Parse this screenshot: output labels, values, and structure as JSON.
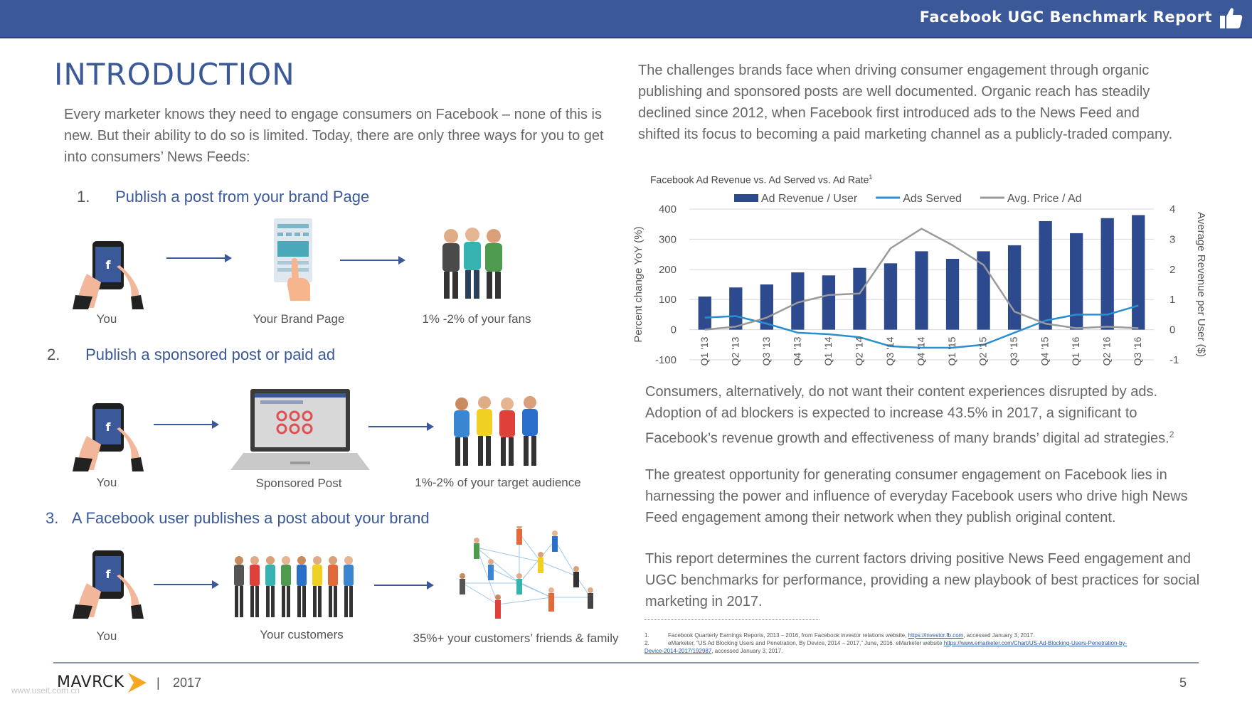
{
  "header": {
    "title": "Facebook UGC Benchmark Report",
    "icon": "thumbs-up-icon",
    "color": "#3b5998"
  },
  "left": {
    "title": "INTRODUCTION",
    "intro": "Every marketer knows they need to engage consumers on Facebook – none of this is new. But their ability to do so is limited. Today, there are only three ways for you to get into consumers’ News Feeds:",
    "steps": [
      {
        "num": "1.",
        "text": "Publish a post from your brand Page",
        "captions": [
          "You",
          "Your Brand Page",
          "1% -2% of your fans"
        ]
      },
      {
        "num": "2.",
        "text": "Publish a sponsored post or paid ad",
        "captions": [
          "You",
          "Sponsored Post",
          "1%-2% of your target audience"
        ]
      },
      {
        "num": "3.",
        "text": "A Facebook user publishes a post about your brand",
        "captions": [
          "You",
          "Your customers",
          "35%+ your customers’ friends & family"
        ]
      }
    ]
  },
  "right": {
    "para1": "The challenges brands face when driving consumer engagement through organic publishing and sponsored posts are well documented. Organic reach has steadily declined since 2012, when Facebook first introduced ads to the News Feed and shifted its focus to becoming a paid marketing channel as a publicly-traded company.",
    "para2": "Consumers, alternatively, do not want their content experiences disrupted by ads. Adoption of ad blockers is expected to increase 43.5% in 2017, a significant to Facebook’s revenue growth and effectiveness of many brands’ digital ad strategies.",
    "para2_sup": "2",
    "para3": "The greatest opportunity for generating consumer engagement on Facebook lies in harnessing the power and influence of everyday Facebook users who drive high News Feed engagement among their network when they publish original content.",
    "para4": "This report determines the current factors driving positive News Feed engagement and UGC benchmarks for performance, providing a new playbook of best practices for social marketing in 2017."
  },
  "chart_data": {
    "type": "bar",
    "title": "Facebook Ad Revenue vs. Ad Served vs. Ad Rate",
    "title_sup": "1",
    "categories": [
      "Q1 '13",
      "Q2 '13",
      "Q3 '13",
      "Q4 '13",
      "Q1 '14",
      "Q2 '14",
      "Q3 '14",
      "Q4 '14",
      "Q1 '15",
      "Q2 '15",
      "Q3 '15",
      "Q4 '15",
      "Q1 '16",
      "Q2 '16",
      "Q3 '16"
    ],
    "ylabel": "Percent change YoY (%)",
    "y2label": "Average Revenue per User ($)",
    "ylim": [
      -100,
      400
    ],
    "y_ticks": [
      -100,
      0,
      100,
      200,
      300,
      400
    ],
    "y2lim": [
      -1,
      4
    ],
    "y2_ticks": [
      -1,
      0,
      1,
      2,
      3,
      4
    ],
    "legend_position": "top",
    "grid": true,
    "series": [
      {
        "name": "Ad Revenue / User",
        "type": "bar",
        "axis": "right",
        "color": "#2e4a8e",
        "values": [
          1.1,
          1.4,
          1.5,
          1.9,
          1.8,
          2.05,
          2.2,
          2.6,
          2.35,
          2.6,
          2.8,
          3.6,
          3.2,
          3.7,
          3.8
        ]
      },
      {
        "name": "Ads Served",
        "type": "line",
        "axis": "left",
        "color": "#2a8fd0",
        "values": [
          40,
          45,
          20,
          -10,
          -15,
          -25,
          -55,
          -60,
          -60,
          -50,
          -10,
          30,
          50,
          50,
          80
        ]
      },
      {
        "name": "Avg. Price / Ad",
        "type": "line",
        "axis": "left",
        "color": "#9a9a9a",
        "values": [
          0,
          10,
          40,
          90,
          115,
          120,
          270,
          335,
          280,
          215,
          60,
          20,
          5,
          10,
          5
        ]
      }
    ]
  },
  "footnotes": [
    {
      "num": "1.",
      "text": "Facebook Quarterly Earnings Reports, 2013 – 2016, from Facebook investor relations website,",
      "link": "https://investor.fb.com",
      "tail": ", accessed January 3, 2017."
    },
    {
      "num": "2.",
      "text": "eMarketer, “US Ad Blocking Users and Penetration, By Device, 2014 – 2017,” June, 2016. eMarketer website",
      "link": "https://www.emarketer.com/Chart/US-Ad-Blocking-Users-Penetration-by-Device-2014-2017/192987",
      "tail": ", accessed January 3, 2017."
    }
  ],
  "footer": {
    "logo": "MAVRCK",
    "separator": "|",
    "year": "2017",
    "page": "5",
    "watermark": "www.useit.com.cn"
  }
}
